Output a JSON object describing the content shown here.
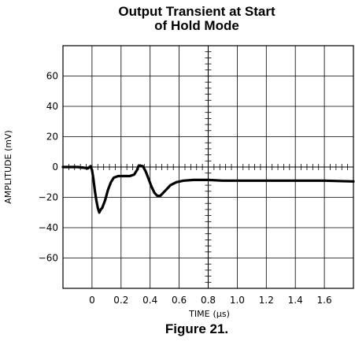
{
  "chart_data": {
    "type": "line",
    "title": "Output Transient at Start",
    "title_line2": "of Hold Mode",
    "xlabel": "TIME",
    "xlabel_unit": "(μs)",
    "ylabel": "AMPLITUDE (mV)",
    "caption": "Figure 21.",
    "xlim": [
      -0.2,
      1.8
    ],
    "ylim": [
      -80,
      80
    ],
    "xticks": [
      0,
      0.2,
      0.4,
      0.6,
      0.8,
      1.0,
      1.2,
      1.4,
      1.6
    ],
    "xtick_labels": [
      "0",
      "0.2",
      "0.4",
      "0.6",
      "0.8",
      "1.0",
      "1.2",
      "1.4",
      "1.6"
    ],
    "yticks": [
      60,
      40,
      20,
      0,
      -20,
      -40,
      -60
    ],
    "ytick_labels": [
      "60",
      "40",
      "20",
      "0",
      "−20",
      "−40",
      "−60"
    ],
    "grid": true,
    "series": [
      {
        "x": [
          -0.2,
          -0.1,
          -0.05,
          -0.03,
          -0.01,
          0.0,
          0.01,
          0.02,
          0.03,
          0.04,
          0.05,
          0.06,
          0.07,
          0.09,
          0.11,
          0.13,
          0.15,
          0.18,
          0.22,
          0.26,
          0.29,
          0.31,
          0.32,
          0.33,
          0.35,
          0.37,
          0.39,
          0.41,
          0.43,
          0.45,
          0.47,
          0.5,
          0.54,
          0.58,
          0.63,
          0.7,
          0.8,
          0.9,
          1.0,
          1.2,
          1.4,
          1.6,
          1.8
        ],
        "y": [
          0,
          0,
          -0.5,
          -1,
          0.5,
          -2,
          -8,
          -16,
          -22,
          -27,
          -30,
          -28,
          -27,
          -22,
          -15,
          -10,
          -7,
          -6,
          -6,
          -6,
          -5,
          -2,
          0.5,
          1,
          0.5,
          -3,
          -8,
          -13,
          -17,
          -19,
          -19,
          -16,
          -12,
          -10,
          -9,
          -8.5,
          -8.5,
          -9,
          -9,
          -9,
          -9,
          -9,
          -9.5
        ]
      }
    ]
  }
}
